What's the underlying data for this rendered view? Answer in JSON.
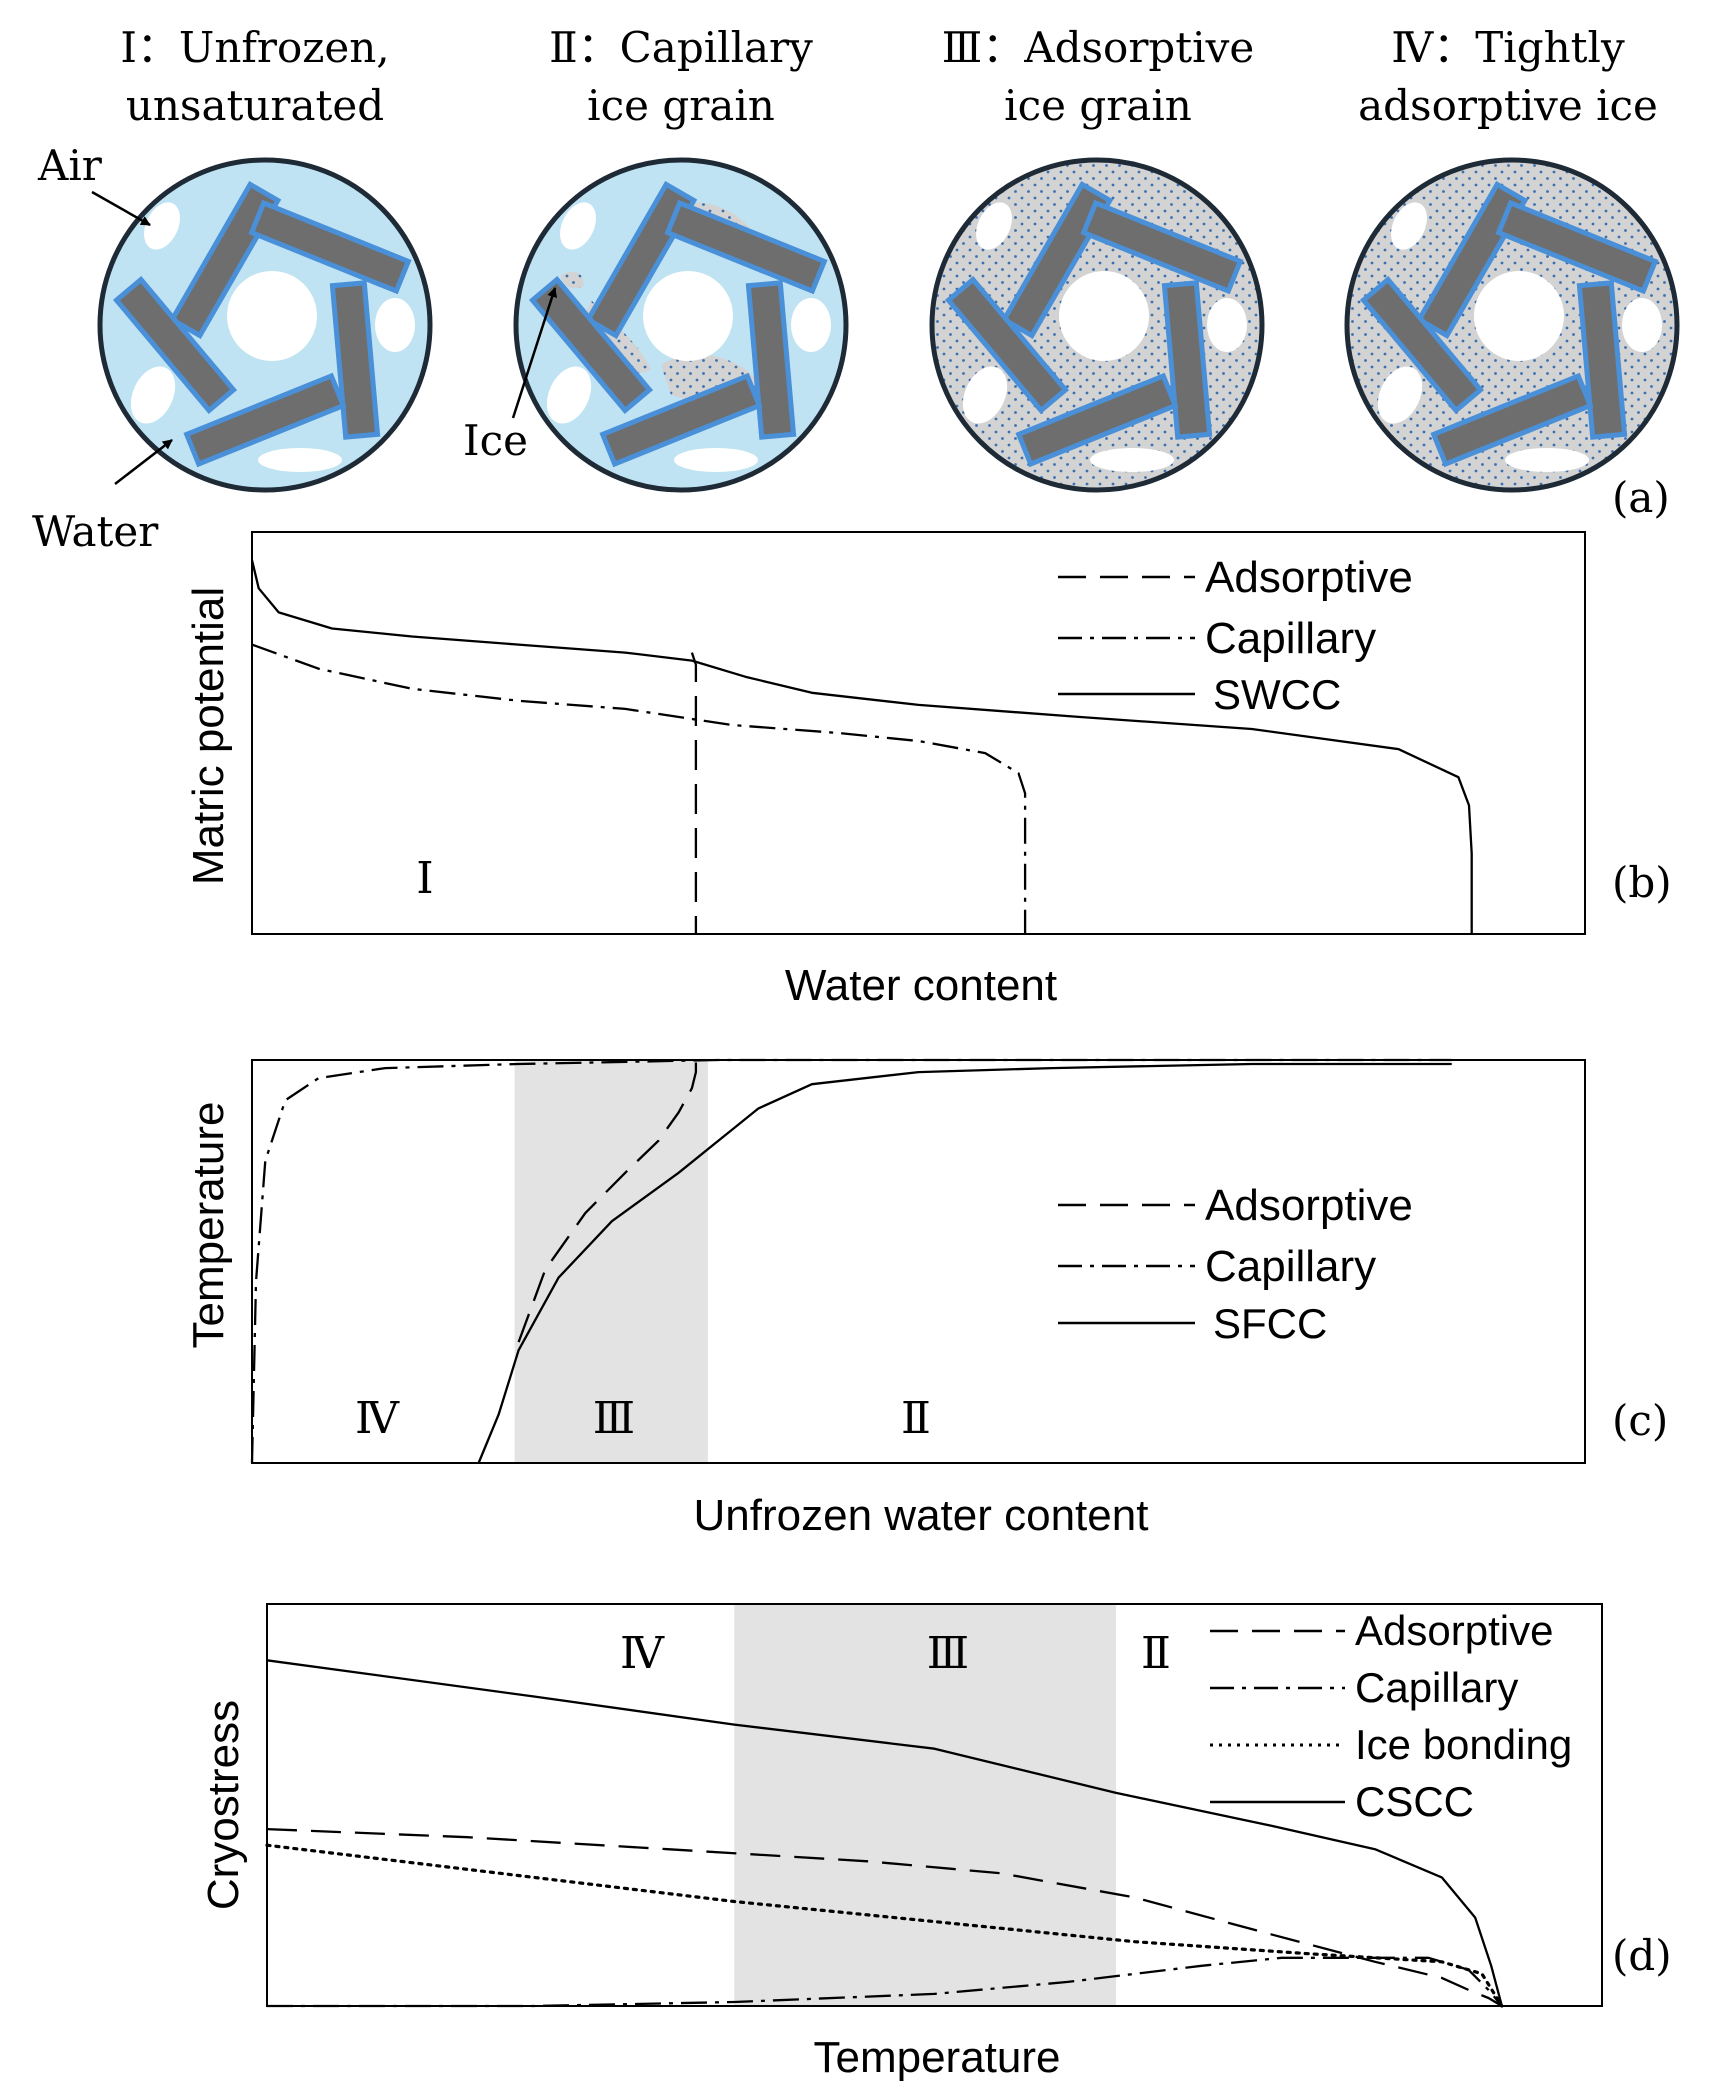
{
  "panel_a": {
    "tag": "(a)",
    "stages": [
      {
        "title_line1": "Ⅰ：Unfrozen,",
        "title_line2": "unsaturated"
      },
      {
        "title_line1": "Ⅱ：Capillary",
        "title_line2": "ice grain"
      },
      {
        "title_line1": "Ⅲ：Adsorptive",
        "title_line2": "ice grain"
      },
      {
        "title_line1": "Ⅳ：Tightly",
        "title_line2": "adsorptive ice"
      }
    ],
    "annotations": {
      "air": "Air",
      "water": "Water",
      "ice": "Ice"
    },
    "colors": {
      "water": "#bfe3f3",
      "ice": "#d3d3d3",
      "particle_fill": "#6e6e6e",
      "particle_border": "#4a90d9",
      "rim": "#1e2a36",
      "dots": "#3a6fb0"
    }
  },
  "panel_b": {
    "tag": "(b)",
    "zone_label": "Ⅰ",
    "chart_data": {
      "type": "line",
      "xlabel": "Water content",
      "ylabel": "Matric potential",
      "xlim": [
        0,
        1
      ],
      "ylim": [
        0,
        1
      ],
      "legend_position": "top-right",
      "series": [
        {
          "name": "Adsorptive",
          "style": "dashed",
          "x": [
            0.33,
            0.333,
            0.333
          ],
          "y": [
            0.7,
            0.67,
            0.0
          ]
        },
        {
          "name": "Capillary",
          "style": "dashdot",
          "x": [
            0.0,
            0.05,
            0.12,
            0.2,
            0.28,
            0.36,
            0.44,
            0.5,
            0.55,
            0.575,
            0.58,
            0.58
          ],
          "y": [
            0.72,
            0.66,
            0.61,
            0.58,
            0.56,
            0.52,
            0.5,
            0.48,
            0.45,
            0.4,
            0.35,
            0.0
          ]
        },
        {
          "name": "SWCC",
          "style": "solid",
          "x": [
            0.0,
            0.005,
            0.02,
            0.06,
            0.12,
            0.2,
            0.28,
            0.33,
            0.37,
            0.42,
            0.5,
            0.62,
            0.75,
            0.86,
            0.905,
            0.913,
            0.915,
            0.915
          ],
          "y": [
            0.93,
            0.86,
            0.8,
            0.76,
            0.74,
            0.72,
            0.7,
            0.68,
            0.64,
            0.6,
            0.57,
            0.54,
            0.51,
            0.46,
            0.39,
            0.32,
            0.2,
            0.0
          ]
        }
      ]
    }
  },
  "panel_c": {
    "tag": "(c)",
    "zone_labels": [
      "Ⅳ",
      "Ⅲ",
      "Ⅱ"
    ],
    "chart_data": {
      "type": "line",
      "xlabel": "Unfrozen water content",
      "ylabel": "Temperature",
      "xlim": [
        0,
        1
      ],
      "ylim": [
        0,
        1
      ],
      "shaded_band_x": [
        0.197,
        0.342
      ],
      "legend_position": "center-right",
      "series": [
        {
          "name": "Adsorptive",
          "style": "dashed",
          "x": [
            0.2,
            0.22,
            0.25,
            0.28,
            0.305,
            0.32,
            0.33,
            0.333,
            0.333
          ],
          "y": [
            0.3,
            0.48,
            0.62,
            0.72,
            0.8,
            0.87,
            0.93,
            0.97,
            1.0
          ]
        },
        {
          "name": "Capillary",
          "style": "dashdot",
          "x": [
            0.0,
            0.003,
            0.01,
            0.025,
            0.05,
            0.1,
            0.2,
            0.35,
            0.6,
            0.9
          ],
          "y": [
            0.0,
            0.45,
            0.75,
            0.9,
            0.955,
            0.98,
            0.99,
            1.0,
            1.0,
            1.0
          ]
        },
        {
          "name": "SFCC",
          "style": "solid",
          "x": [
            0.17,
            0.185,
            0.2,
            0.23,
            0.27,
            0.32,
            0.35,
            0.38,
            0.42,
            0.5,
            0.6,
            0.75,
            0.9
          ],
          "y": [
            0.0,
            0.12,
            0.28,
            0.46,
            0.6,
            0.72,
            0.8,
            0.88,
            0.94,
            0.97,
            0.98,
            0.99,
            0.99
          ]
        }
      ]
    }
  },
  "panel_d": {
    "tag": "(d)",
    "zone_labels": [
      "Ⅳ",
      "Ⅲ",
      "Ⅱ"
    ],
    "chart_data": {
      "type": "line",
      "xlabel": "Temperature",
      "ylabel": "Cryostress",
      "xlim": [
        0,
        1
      ],
      "ylim": [
        0,
        1
      ],
      "shaded_band_x": [
        0.35,
        0.636
      ],
      "legend_position": "top-right",
      "series": [
        {
          "name": "Adsorptive",
          "style": "dashed",
          "x": [
            0.0,
            0.15,
            0.3,
            0.45,
            0.55,
            0.65,
            0.75,
            0.83,
            0.88,
            0.9,
            0.915,
            0.925
          ],
          "y": [
            0.44,
            0.42,
            0.39,
            0.36,
            0.33,
            0.27,
            0.18,
            0.11,
            0.07,
            0.04,
            0.02,
            0.0
          ]
        },
        {
          "name": "Capillary",
          "style": "dashdot",
          "x": [
            0.0,
            0.2,
            0.35,
            0.5,
            0.6,
            0.7,
            0.76,
            0.82,
            0.87,
            0.9,
            0.915,
            0.925
          ],
          "y": [
            0.0,
            0.0,
            0.01,
            0.03,
            0.06,
            0.1,
            0.12,
            0.12,
            0.12,
            0.09,
            0.04,
            0.0
          ]
        },
        {
          "name": "Ice bonding",
          "style": "dotted",
          "x": [
            0.0,
            0.2,
            0.35,
            0.5,
            0.65,
            0.78,
            0.88,
            0.91,
            0.925
          ],
          "y": [
            0.4,
            0.32,
            0.26,
            0.21,
            0.16,
            0.13,
            0.11,
            0.08,
            0.0
          ]
        },
        {
          "name": "CSCC",
          "style": "solid",
          "x": [
            0.0,
            0.2,
            0.35,
            0.5,
            0.636,
            0.75,
            0.83,
            0.88,
            0.905,
            0.917,
            0.925
          ],
          "y": [
            0.86,
            0.77,
            0.7,
            0.64,
            0.53,
            0.45,
            0.39,
            0.32,
            0.22,
            0.1,
            0.0
          ]
        }
      ]
    }
  }
}
